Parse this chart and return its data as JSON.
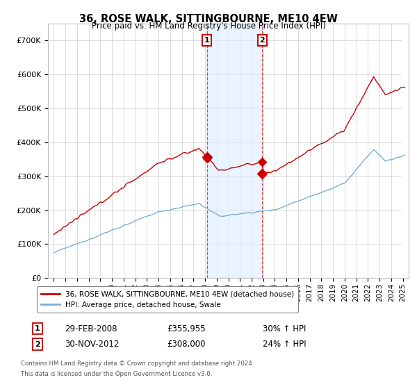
{
  "title": "36, ROSE WALK, SITTINGBOURNE, ME10 4EW",
  "subtitle": "Price paid vs. HM Land Registry's House Price Index (HPI)",
  "legend_line1": "36, ROSE WALK, SITTINGBOURNE, ME10 4EW (detached house)",
  "legend_line2": "HPI: Average price, detached house, Swale",
  "annotation1_label": "1",
  "annotation1_date": "29-FEB-2008",
  "annotation1_price": "£355,955",
  "annotation1_hpi": "30% ↑ HPI",
  "annotation2_label": "2",
  "annotation2_date": "30-NOV-2012",
  "annotation2_price": "£308,000",
  "annotation2_hpi": "24% ↑ HPI",
  "footnote1": "Contains HM Land Registry data © Crown copyright and database right 2024.",
  "footnote2": "This data is licensed under the Open Government Licence v3.0.",
  "ylim": [
    0,
    750000
  ],
  "yticks": [
    0,
    100000,
    200000,
    300000,
    400000,
    500000,
    600000,
    700000
  ],
  "ytick_labels": [
    "£0",
    "£100K",
    "£200K",
    "£300K",
    "£400K",
    "£500K",
    "£600K",
    "£700K"
  ],
  "red_color": "#cc0000",
  "blue_color": "#7aaed6",
  "purchase1_year": 2008.167,
  "purchase1_price": 355955,
  "purchase2_year": 2012.917,
  "purchase2_price": 308000,
  "x_start": 1995.0,
  "x_end": 2025.25,
  "xlim_left": 1994.5,
  "xlim_right": 2025.5
}
